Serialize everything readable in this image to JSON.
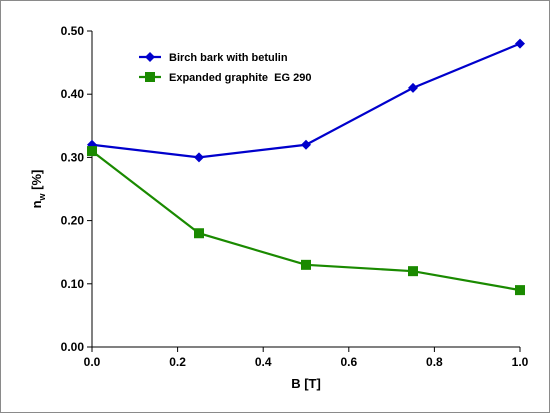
{
  "chart_data": {
    "type": "line",
    "title": "",
    "xlabel": "B [T]",
    "ylabel_main": "n",
    "ylabel_sub": "w",
    "ylabel_unit": " [%]",
    "xlim": [
      0.0,
      1.0
    ],
    "ylim": [
      0.0,
      0.5
    ],
    "xticks": [
      "0.0",
      "0.2",
      "0.4",
      "0.6",
      "0.8",
      "1.0"
    ],
    "yticks": [
      "0.00",
      "0.10",
      "0.20",
      "0.30",
      "0.40",
      "0.50"
    ],
    "grid": false,
    "legend_position": "top-left",
    "x": [
      0.0,
      0.25,
      0.5,
      0.75,
      1.0
    ],
    "series": [
      {
        "name": "Birch bark with betulin",
        "values": [
          0.32,
          0.3,
          0.32,
          0.41,
          0.48
        ],
        "color": "#0000cc",
        "marker": "diamond"
      },
      {
        "name": "Expanded graphite  EG 290",
        "values": [
          0.31,
          0.18,
          0.13,
          0.12,
          0.09
        ],
        "color": "#1a8a00",
        "marker": "square"
      }
    ]
  }
}
